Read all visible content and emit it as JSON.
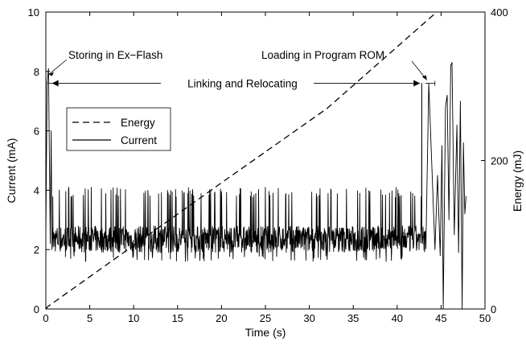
{
  "chart_data": {
    "type": "line",
    "x": {
      "label": "Time (s)",
      "range": [
        0,
        50
      ],
      "ticks": [
        0,
        5,
        10,
        15,
        20,
        25,
        30,
        35,
        40,
        45,
        50
      ]
    },
    "y_left": {
      "label": "Current (mA)",
      "range": [
        0,
        10
      ],
      "ticks": [
        0,
        2,
        4,
        6,
        8,
        10
      ]
    },
    "y_right": {
      "label": "Energy (mJ)",
      "range": [
        0,
        400
      ],
      "ticks": [
        0,
        200,
        400
      ]
    },
    "grid": false,
    "legend": {
      "placement": "upper-left",
      "entries": [
        {
          "name": "Energy",
          "style": "dashed"
        },
        {
          "name": "Current",
          "style": "solid"
        }
      ]
    },
    "series": [
      {
        "name": "Energy",
        "axis": "right",
        "style": "dashed",
        "points": [
          [
            0,
            0
          ],
          [
            0.2,
            3
          ],
          [
            20,
            170
          ],
          [
            32,
            270
          ],
          [
            44.5,
            400
          ]
        ]
      },
      {
        "name": "Current",
        "axis": "left",
        "style": "solid",
        "description_points": {
          "startup": [
            [
              0,
              2.5
            ],
            [
              0.15,
              7.6
            ],
            [
              0.3,
              8.1
            ],
            [
              0.5,
              2.2
            ],
            [
              0.6,
              6.0
            ],
            [
              0.7,
              2.0
            ],
            [
              0.8,
              2.8
            ]
          ],
          "steady_band": {
            "x_range": [
              0.8,
              43.3
            ],
            "low": 1.9,
            "high": 2.8,
            "spike_max": 4.1,
            "spike_min": 1.6
          },
          "loading_spikes": [
            [
              42.8,
              7.6
            ],
            [
              43.6,
              7.6
            ]
          ],
          "tail": [
            [
              44.3,
              2.0
            ],
            [
              44.6,
              4.5
            ],
            [
              44.9,
              1.8
            ],
            [
              45.1,
              5.5
            ],
            [
              45.25,
              0
            ],
            [
              45.5,
              6.8
            ],
            [
              45.7,
              7.2
            ],
            [
              45.9,
              3.0
            ],
            [
              46.1,
              8.2
            ],
            [
              46.25,
              8.3
            ],
            [
              46.5,
              2.5
            ],
            [
              46.8,
              6.2
            ],
            [
              47.0,
              1.9
            ],
            [
              47.2,
              7.0
            ],
            [
              47.4,
              0
            ],
            [
              47.55,
              5.6
            ],
            [
              47.7,
              3.2
            ],
            [
              47.85,
              3.8
            ]
          ]
        }
      }
    ],
    "annotations": [
      {
        "text": "Storing in Ex−Flash",
        "at": [
          0.35,
          7.9
        ]
      },
      {
        "text": "Linking and Relocating",
        "span": [
          0.7,
          42.6
        ],
        "y": 7.6
      },
      {
        "text": "Loading in Program ROM",
        "at": [
          43.2,
          7.6
        ],
        "span": [
          43.2,
          44.3
        ]
      }
    ]
  }
}
